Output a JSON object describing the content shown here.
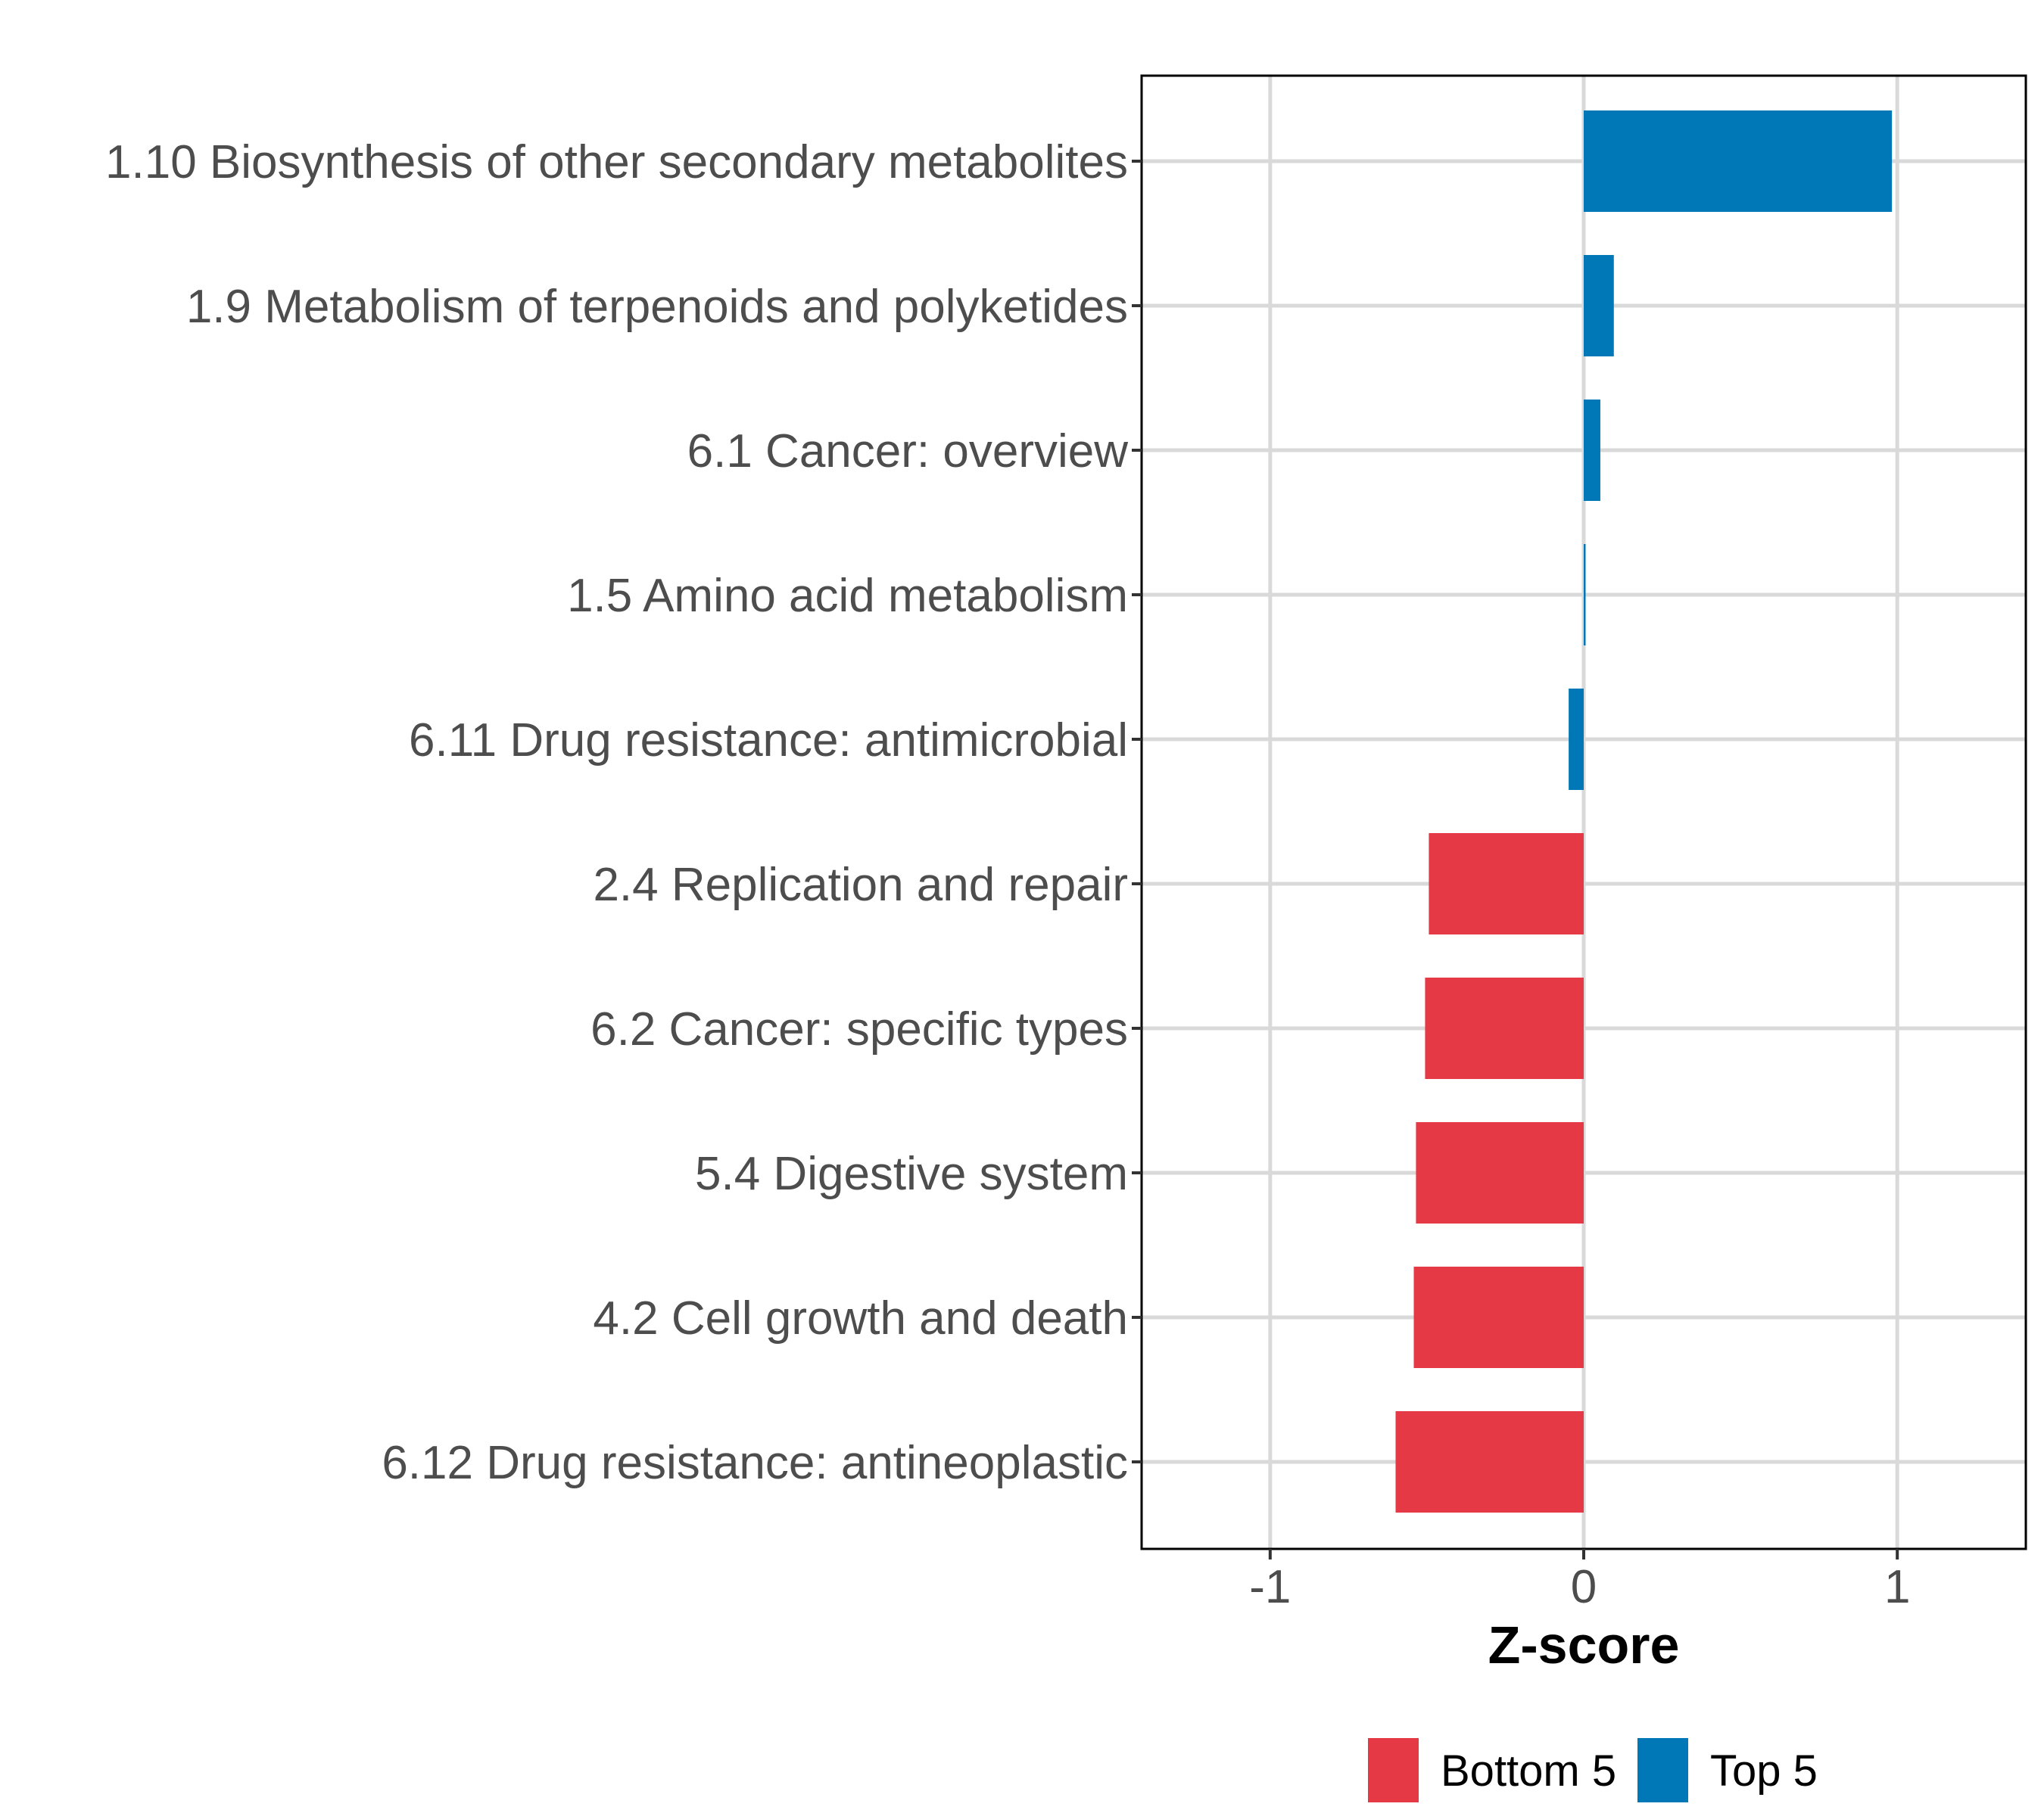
{
  "chart_data": {
    "type": "bar",
    "orientation": "horizontal",
    "title": "",
    "xlabel": "Z-score",
    "ylabel": "",
    "xlim": [
      -1.41,
      1.41
    ],
    "xticks": [
      -1,
      0,
      1
    ],
    "xtick_labels": [
      "-1",
      "0",
      "1"
    ],
    "grid": true,
    "legend_position": "bottom",
    "categories": [
      "1.10 Biosynthesis of other secondary metabolites",
      "1.9 Metabolism of terpenoids and polyketides",
      "6.1 Cancer: overview",
      "1.5 Amino acid metabolism",
      "6.11 Drug resistance: antimicrobial",
      "2.4 Replication and repair",
      "6.2 Cancer: specific types",
      "5.4 Digestive system",
      "4.2 Cell growth and death",
      "6.12 Drug resistance: antineoplastic"
    ],
    "values": [
      0.983,
      0.096,
      0.053,
      0.006,
      -0.048,
      -0.494,
      -0.506,
      -0.535,
      -0.542,
      -0.6
    ],
    "groups": [
      "Top 5",
      "Top 5",
      "Top 5",
      "Top 5",
      "Top 5",
      "Bottom 5",
      "Bottom 5",
      "Bottom 5",
      "Bottom 5",
      "Bottom 5"
    ],
    "series": [
      {
        "name": "Bottom 5",
        "color": "#E63946"
      },
      {
        "name": "Top 5",
        "color": "#0077B6"
      }
    ]
  },
  "colors": {
    "top": "#0077B6",
    "bottom": "#E63946",
    "grid": "#D9D9D9",
    "axis_text": "#4D4D4D",
    "panel_border": "#000000"
  }
}
